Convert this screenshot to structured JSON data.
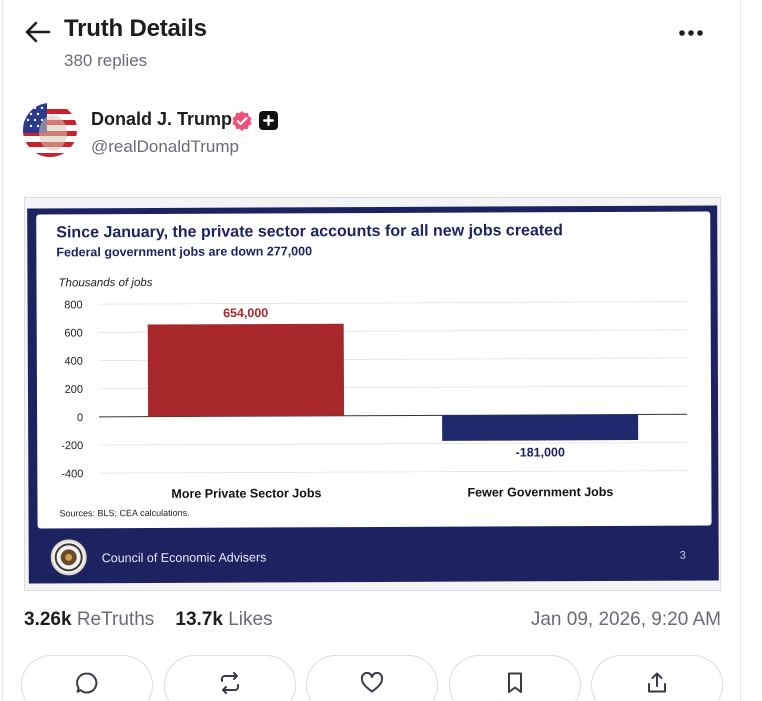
{
  "header": {
    "title": "Truth Details",
    "replies": "380 replies"
  },
  "author": {
    "name": "Donald J. Trump",
    "handle": "@realDonaldTrump"
  },
  "colors": {
    "verified_badge": "#ef4f7b",
    "slide_navy": "#1d2361",
    "bar_red": "#a8272a",
    "bar_navy": "#1f2a6e"
  },
  "icons": {
    "back": "arrow-left-icon",
    "more": "more-horizontal-icon",
    "verified": "verified-badge-icon",
    "plus": "plus-badge-icon",
    "reply": "reply-icon",
    "retruth": "retruth-icon",
    "like": "heart-icon",
    "bookmark": "bookmark-icon",
    "share": "share-icon"
  },
  "post": {
    "image": {
      "slide_footer": "Council of Economic Advisers",
      "slide_number": "3"
    },
    "retruths_count": "3.26k",
    "retruths_label": "ReTruths",
    "likes_count": "13.7k",
    "likes_label": "Likes",
    "timestamp": "Jan 09, 2026, 9:20 AM"
  },
  "chart_data": {
    "type": "bar",
    "title": "Since January, the private sector accounts for all new jobs created",
    "subtitle": "Federal government jobs are down 277,000",
    "ylabel": "Thousands of jobs",
    "categories": [
      "More Private Sector Jobs",
      "Fewer Government Jobs"
    ],
    "values": [
      654,
      -181
    ],
    "data_labels": [
      "654,000",
      "-181,000"
    ],
    "ylim": [
      -400,
      800
    ],
    "yticks": [
      800,
      600,
      400,
      200,
      0,
      -200,
      -400
    ],
    "grid": true,
    "bar_colors": [
      "#a8272a",
      "#1f2a6e"
    ],
    "source": "Sources: BLS; CEA calculations."
  }
}
